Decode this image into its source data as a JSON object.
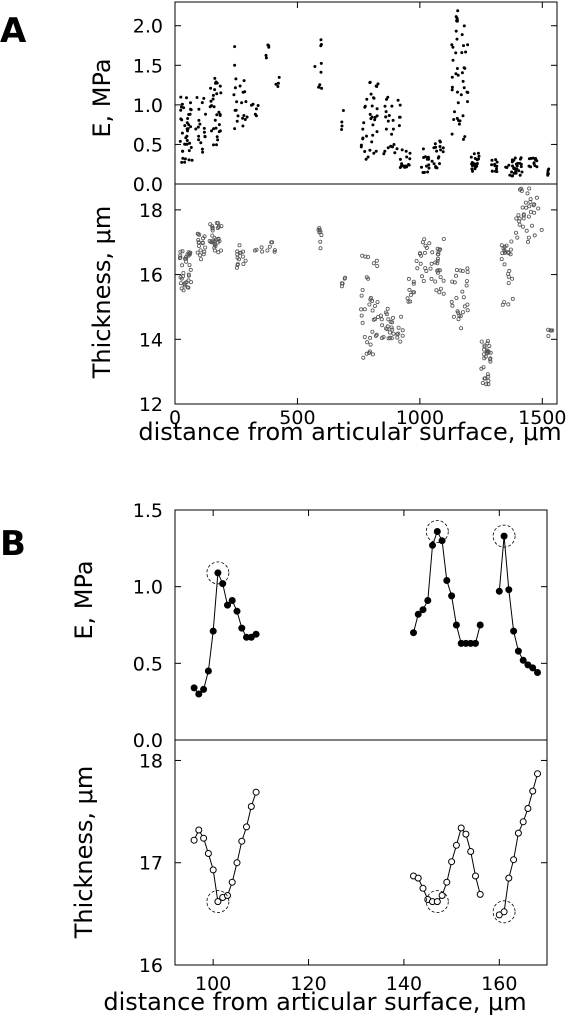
{
  "panels": [
    {
      "label": "A",
      "xlabel": "distance from articular surface,  μm",
      "xlim": [
        0,
        1560
      ],
      "xticks": [
        "0",
        "500",
        "1000",
        "1500"
      ],
      "xtick_values": [
        0,
        500,
        1000,
        1500
      ],
      "subplots": [
        {
          "ylabel": "E, MPa",
          "ylim": [
            0,
            2.3
          ],
          "yticks": [
            "0.0",
            "0.5",
            "1.0",
            "1.5",
            "2.0"
          ],
          "ytick_values": [
            0,
            0.5,
            1.0,
            1.5,
            2.0
          ]
        },
        {
          "ylabel": "Thickness,  μm",
          "ylim": [
            12,
            18.8
          ],
          "yticks": [
            "12",
            "14",
            "16",
            "18"
          ],
          "ytick_values": [
            12,
            14,
            16,
            18
          ]
        }
      ]
    },
    {
      "label": "B",
      "xlabel": "distance from articular surface,  μm",
      "xlim": [
        92,
        170
      ],
      "xticks": [
        "100",
        "120",
        "140",
        "160"
      ],
      "xtick_values": [
        100,
        120,
        140,
        160
      ],
      "subplots": [
        {
          "ylabel": "E, MPa",
          "ylim": [
            0,
            1.5
          ],
          "yticks": [
            "0.0",
            "0.5",
            "1.0",
            "1.5"
          ],
          "ytick_values": [
            0,
            0.5,
            1.0,
            1.5
          ]
        },
        {
          "ylabel": "Thickness,  μm",
          "ylim": [
            16,
            18.2
          ],
          "yticks": [
            "16",
            "17",
            "18"
          ],
          "ytick_values": [
            16,
            17,
            18
          ]
        }
      ]
    }
  ],
  "chart_data": [
    {
      "type": "scatter",
      "panel": "A",
      "title": "",
      "xlabel": "distance from articular surface,  μm",
      "ylabel": "E, MPa",
      "xlim": [
        0,
        1560
      ],
      "ylim": [
        0,
        2.3
      ],
      "grid": false,
      "marker": "filled",
      "color": "#000000",
      "groups": [
        {
          "x": [
            20,
            70
          ],
          "y_range": [
            0.25,
            1.1
          ],
          "n": 40
        },
        {
          "x": [
            85,
            130
          ],
          "y_range": [
            0.4,
            1.1
          ],
          "n": 18
        },
        {
          "x": [
            140,
            190
          ],
          "y_range": [
            0.45,
            1.35
          ],
          "n": 30
        },
        {
          "x": [
            240,
            295
          ],
          "y_range": [
            0.7,
            1.75
          ],
          "n": 22
        },
        {
          "x": [
            310,
            340
          ],
          "y_range": [
            0.85,
            1.05
          ],
          "n": 6
        },
        {
          "x": [
            370,
            385
          ],
          "y_range": [
            1.45,
            2.0
          ],
          "n": 5
        },
        {
          "x": [
            410,
            430
          ],
          "y_range": [
            1.1,
            1.35
          ],
          "n": 4
        },
        {
          "x": [
            570,
            600
          ],
          "y_range": [
            1.2,
            1.85
          ],
          "n": 10
        },
        {
          "x": [
            680,
            690
          ],
          "y_range": [
            0.5,
            1.05
          ],
          "n": 4
        },
        {
          "x": [
            760,
            830
          ],
          "y_range": [
            0.3,
            1.3
          ],
          "n": 36
        },
        {
          "x": [
            850,
            920
          ],
          "y_range": [
            0.35,
            1.1
          ],
          "n": 26
        },
        {
          "x": [
            920,
            960
          ],
          "y_range": [
            0.2,
            0.45
          ],
          "n": 16
        },
        {
          "x": [
            1000,
            1040
          ],
          "y_range": [
            0.1,
            0.45
          ],
          "n": 14
        },
        {
          "x": [
            1050,
            1100
          ],
          "y_range": [
            0.2,
            0.55
          ],
          "n": 18
        },
        {
          "x": [
            1130,
            1200
          ],
          "y_range": [
            0.55,
            2.2
          ],
          "n": 45
        },
        {
          "x": [
            1210,
            1250
          ],
          "y_range": [
            0.15,
            0.4
          ],
          "n": 20
        },
        {
          "x": [
            1290,
            1320
          ],
          "y_range": [
            0.15,
            0.35
          ],
          "n": 12
        },
        {
          "x": [
            1350,
            1420
          ],
          "y_range": [
            0.1,
            0.35
          ],
          "n": 30
        },
        {
          "x": [
            1440,
            1480
          ],
          "y_range": [
            0.2,
            0.35
          ],
          "n": 12
        },
        {
          "x": [
            1520,
            1540
          ],
          "y_range": [
            0.1,
            0.2
          ],
          "n": 5
        }
      ]
    },
    {
      "type": "scatter",
      "panel": "A",
      "title": "",
      "xlabel": "distance from articular surface,  μm",
      "ylabel": "Thickness,  μm",
      "xlim": [
        0,
        1560
      ],
      "ylim": [
        12,
        18.8
      ],
      "grid": false,
      "marker": "open",
      "color": "#555555",
      "groups": [
        {
          "x": [
            20,
            70
          ],
          "y_range": [
            15.5,
            16.8
          ],
          "n": 35
        },
        {
          "x": [
            90,
            130
          ],
          "y_range": [
            16.2,
            17.3
          ],
          "n": 18
        },
        {
          "x": [
            140,
            190
          ],
          "y_range": [
            16.5,
            17.6
          ],
          "n": 30
        },
        {
          "x": [
            250,
            290
          ],
          "y_range": [
            16.2,
            17.0
          ],
          "n": 14
        },
        {
          "x": [
            320,
            420
          ],
          "y_range": [
            16.7,
            17.0
          ],
          "n": 10
        },
        {
          "x": [
            570,
            600
          ],
          "y_range": [
            16.7,
            17.5
          ],
          "n": 8
        },
        {
          "x": [
            680,
            695
          ],
          "y_range": [
            15.2,
            16.2
          ],
          "n": 5
        },
        {
          "x": [
            760,
            830
          ],
          "y_range": [
            13.4,
            16.6
          ],
          "n": 36
        },
        {
          "x": [
            840,
            930
          ],
          "y_range": [
            13.8,
            15.0
          ],
          "n": 30
        },
        {
          "x": [
            950,
            1000
          ],
          "y_range": [
            15.0,
            16.6
          ],
          "n": 12
        },
        {
          "x": [
            1000,
            1100
          ],
          "y_range": [
            15.4,
            17.1
          ],
          "n": 40
        },
        {
          "x": [
            1130,
            1200
          ],
          "y_range": [
            14.3,
            16.2
          ],
          "n": 26
        },
        {
          "x": [
            1250,
            1290
          ],
          "y_range": [
            12.6,
            14.0
          ],
          "n": 30
        },
        {
          "x": [
            1330,
            1380
          ],
          "y_range": [
            15.0,
            17.2
          ],
          "n": 24
        },
        {
          "x": [
            1390,
            1500
          ],
          "y_range": [
            17.0,
            18.7
          ],
          "n": 35
        },
        {
          "x": [
            1520,
            1545
          ],
          "y_range": [
            14.0,
            14.3
          ],
          "n": 5
        }
      ]
    },
    {
      "type": "line",
      "panel": "B",
      "title": "",
      "xlabel": "distance from articular surface,  μm",
      "ylabel": "E, MPa",
      "xlim": [
        92,
        170
      ],
      "ylim": [
        0,
        1.5
      ],
      "grid": false,
      "marker": "filled",
      "series": [
        {
          "x": [
            96,
            97,
            98,
            99,
            100,
            101,
            102,
            103,
            104,
            105,
            106,
            107,
            108,
            109
          ],
          "y": [
            0.34,
            0.3,
            0.33,
            0.45,
            0.71,
            1.09,
            1.02,
            0.88,
            0.91,
            0.84,
            0.73,
            0.67,
            0.67,
            0.69
          ]
        },
        {
          "x": [
            142,
            143,
            144,
            145,
            146,
            147,
            148,
            149,
            150,
            151,
            152,
            153,
            154,
            155,
            156
          ],
          "y": [
            0.7,
            0.82,
            0.85,
            0.91,
            1.27,
            1.36,
            1.3,
            1.04,
            0.94,
            0.75,
            0.63,
            0.63,
            0.63,
            0.63,
            0.75
          ]
        },
        {
          "x": [
            160,
            161,
            162,
            163,
            164,
            165,
            166,
            167,
            168
          ],
          "y": [
            0.97,
            1.33,
            0.98,
            0.71,
            0.58,
            0.52,
            0.49,
            0.47,
            0.44
          ]
        }
      ],
      "highlighted_peaks": [
        {
          "x": 101,
          "y": 1.09
        },
        {
          "x": 147,
          "y": 1.36
        },
        {
          "x": 161,
          "y": 1.33
        }
      ]
    },
    {
      "type": "line",
      "panel": "B",
      "title": "",
      "xlabel": "distance from articular surface,  μm",
      "ylabel": "Thickness,  μm",
      "xlim": [
        92,
        170
      ],
      "ylim": [
        16,
        18.2
      ],
      "grid": false,
      "marker": "open",
      "series": [
        {
          "x": [
            96,
            97,
            98,
            99,
            100,
            101,
            102,
            103,
            104,
            105,
            106,
            107,
            108,
            109
          ],
          "y": [
            17.22,
            17.32,
            17.24,
            17.09,
            16.93,
            16.62,
            16.66,
            16.68,
            16.81,
            17.0,
            17.21,
            17.35,
            17.55,
            17.69
          ]
        },
        {
          "x": [
            142,
            143,
            144,
            145,
            146,
            147,
            148,
            149,
            150,
            151,
            152,
            153,
            154,
            155,
            156
          ],
          "y": [
            16.87,
            16.85,
            16.75,
            16.64,
            16.62,
            16.62,
            16.68,
            16.81,
            17.01,
            17.17,
            17.34,
            17.28,
            17.11,
            16.87,
            16.69
          ]
        },
        {
          "x": [
            160,
            161,
            162,
            163,
            164,
            165,
            166,
            167,
            168
          ],
          "y": [
            16.49,
            16.52,
            16.85,
            17.03,
            17.29,
            17.4,
            17.53,
            17.7,
            17.87
          ]
        }
      ],
      "highlighted_minima": [
        {
          "x": 101,
          "y": 16.62
        },
        {
          "x": 147,
          "y": 16.62
        },
        {
          "x": 161,
          "y": 16.52
        }
      ]
    }
  ]
}
